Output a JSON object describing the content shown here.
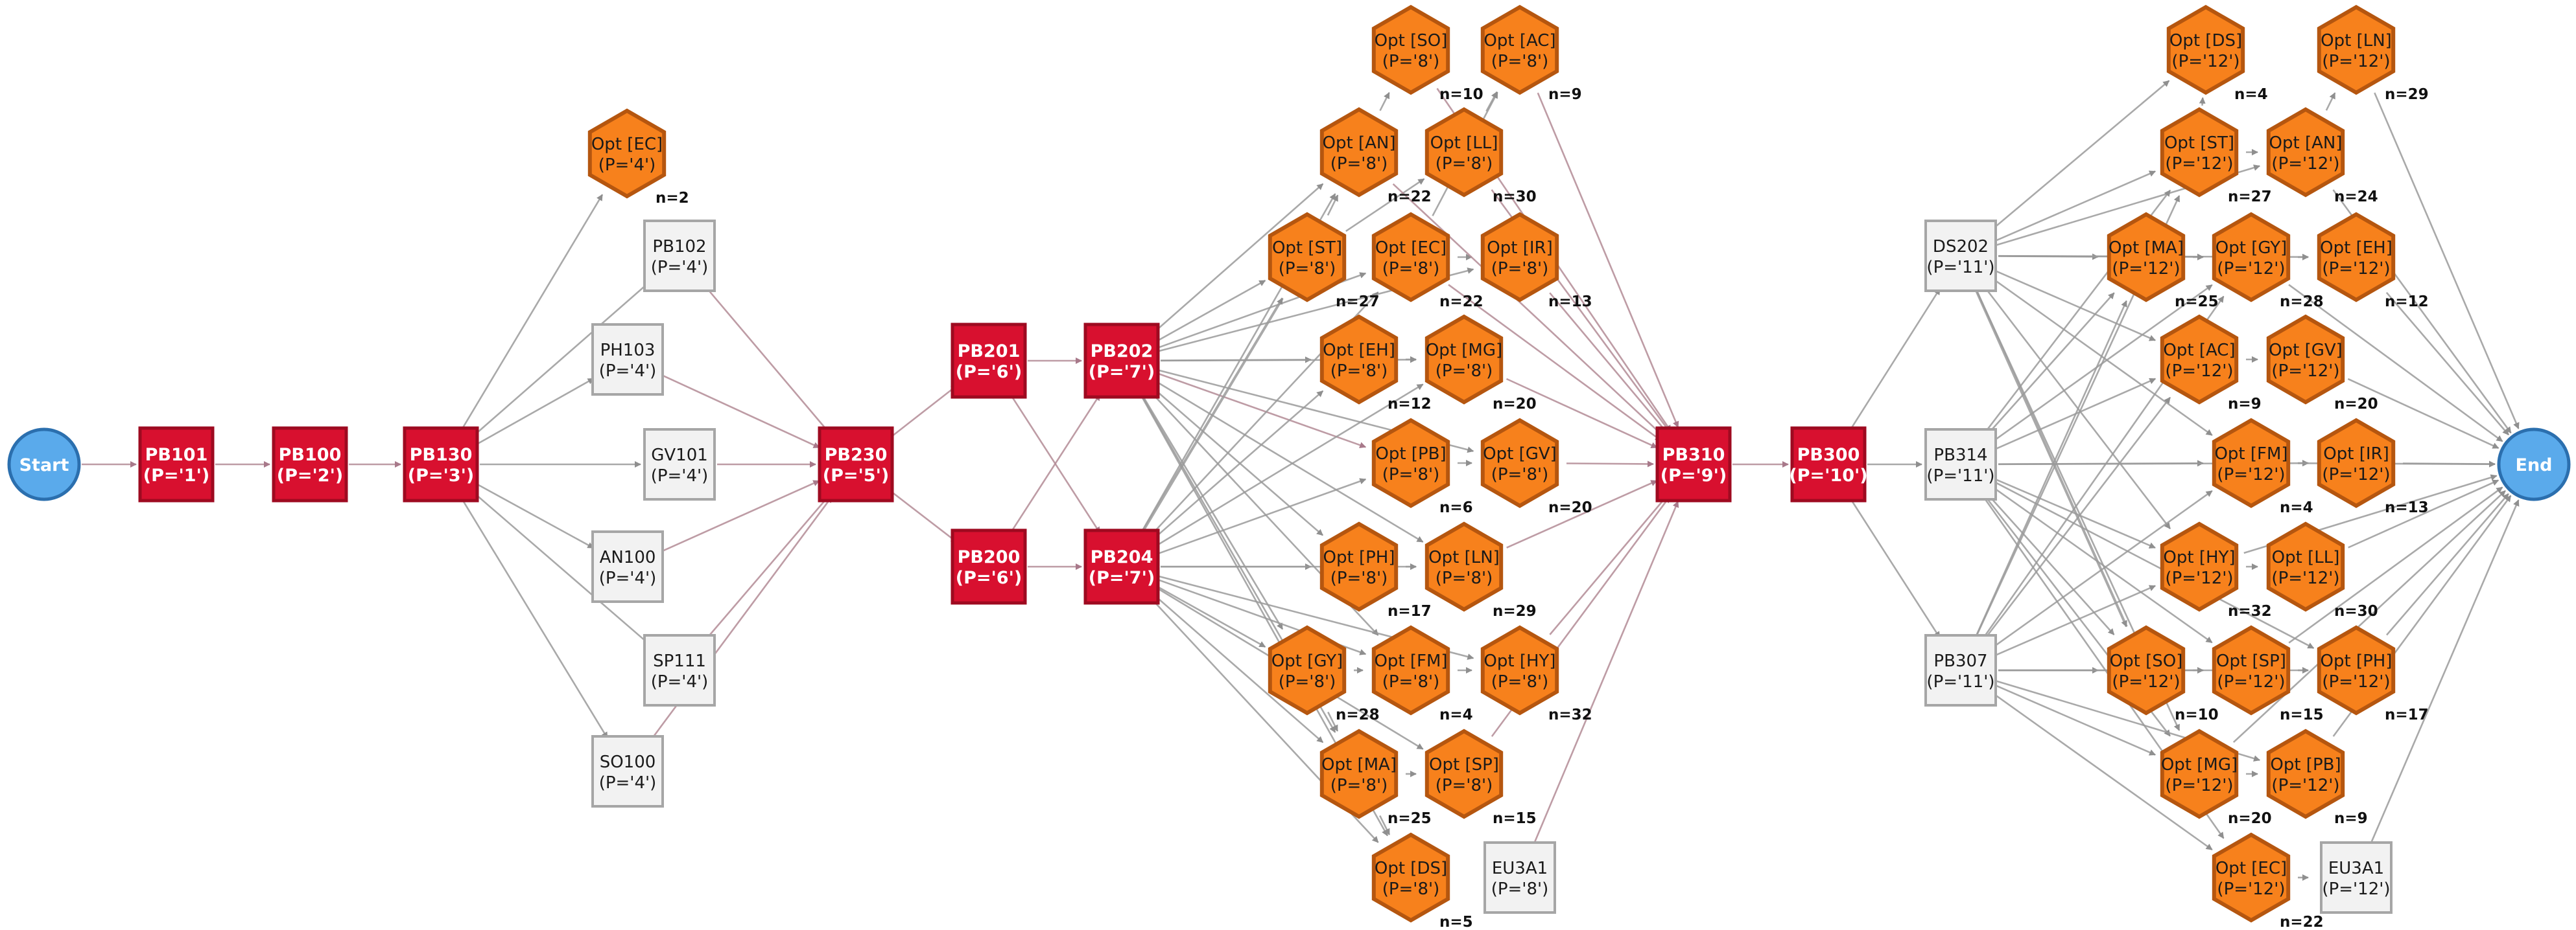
{
  "colors": {
    "background": "#ffffff",
    "start_end_fill": "#5aaaeb",
    "start_end_stroke": "#2b6fae",
    "required_fill": "#d8102f",
    "required_stroke": "#9e0a20",
    "option_fill": "#f7811c",
    "option_stroke": "#b5560f",
    "plain_fill": "#f2f2f2",
    "plain_stroke": "#a6a6a6",
    "edge_pink": "#b38b95",
    "edge_grey": "#9a9a9a",
    "edge_dark": "#707070"
  },
  "nodes": [
    {
      "id": "Start",
      "type": "terminal",
      "label": "Start"
    },
    {
      "id": "End",
      "type": "terminal",
      "label": "End"
    },
    {
      "id": "PB101",
      "type": "required",
      "label": "PB101",
      "period": "(P='1')"
    },
    {
      "id": "PB100",
      "type": "required",
      "label": "PB100",
      "period": "(P='2')"
    },
    {
      "id": "PB130",
      "type": "required",
      "label": "PB130",
      "period": "(P='3')"
    },
    {
      "id": "opt_EC_4",
      "type": "option",
      "label": "Opt [EC]",
      "period": "(P='4')",
      "n": "n=2"
    },
    {
      "id": "PB102",
      "type": "plain",
      "label": "PB102",
      "period": "(P='4')"
    },
    {
      "id": "PH103",
      "type": "plain",
      "label": "PH103",
      "period": "(P='4')"
    },
    {
      "id": "GV101",
      "type": "plain",
      "label": "GV101",
      "period": "(P='4')"
    },
    {
      "id": "AN100",
      "type": "plain",
      "label": "AN100",
      "period": "(P='4')"
    },
    {
      "id": "SP111",
      "type": "plain",
      "label": "SP111",
      "period": "(P='4')"
    },
    {
      "id": "SO100",
      "type": "plain",
      "label": "SO100",
      "period": "(P='4')"
    },
    {
      "id": "PB230",
      "type": "required",
      "label": "PB230",
      "period": "(P='5')"
    },
    {
      "id": "PB201",
      "type": "required",
      "label": "PB201",
      "period": "(P='6')"
    },
    {
      "id": "PB200",
      "type": "required",
      "label": "PB200",
      "period": "(P='6')"
    },
    {
      "id": "PB202",
      "type": "required",
      "label": "PB202",
      "period": "(P='7')"
    },
    {
      "id": "PB204",
      "type": "required",
      "label": "PB204",
      "period": "(P='7')"
    },
    {
      "id": "o8_SO",
      "type": "option",
      "label": "Opt [SO]",
      "period": "(P='8')",
      "n": "n=10"
    },
    {
      "id": "o8_AC",
      "type": "option",
      "label": "Opt [AC]",
      "period": "(P='8')",
      "n": "n=9"
    },
    {
      "id": "o8_AN",
      "type": "option",
      "label": "Opt [AN]",
      "period": "(P='8')",
      "n": "n=22"
    },
    {
      "id": "o8_LL",
      "type": "option",
      "label": "Opt [LL]",
      "period": "(P='8')",
      "n": "n=30"
    },
    {
      "id": "o8_ST",
      "type": "option",
      "label": "Opt [ST]",
      "period": "(P='8')",
      "n": "n=27"
    },
    {
      "id": "o8_EC",
      "type": "option",
      "label": "Opt [EC]",
      "period": "(P='8')",
      "n": "n=22"
    },
    {
      "id": "o8_IR",
      "type": "option",
      "label": "Opt [IR]",
      "period": "(P='8')",
      "n": "n=13"
    },
    {
      "id": "o8_EH",
      "type": "option",
      "label": "Opt [EH]",
      "period": "(P='8')",
      "n": "n=12"
    },
    {
      "id": "o8_MG",
      "type": "option",
      "label": "Opt [MG]",
      "period": "(P='8')",
      "n": "n=20"
    },
    {
      "id": "o8_PB",
      "type": "option",
      "label": "Opt [PB]",
      "period": "(P='8')",
      "n": "n=6"
    },
    {
      "id": "o8_GV",
      "type": "option",
      "label": "Opt [GV]",
      "period": "(P='8')",
      "n": "n=20"
    },
    {
      "id": "o8_PH",
      "type": "option",
      "label": "Opt [PH]",
      "period": "(P='8')",
      "n": "n=17"
    },
    {
      "id": "o8_LN",
      "type": "option",
      "label": "Opt [LN]",
      "period": "(P='8')",
      "n": "n=29"
    },
    {
      "id": "o8_GY",
      "type": "option",
      "label": "Opt [GY]",
      "period": "(P='8')",
      "n": "n=28"
    },
    {
      "id": "o8_FM",
      "type": "option",
      "label": "Opt [FM]",
      "period": "(P='8')",
      "n": "n=4"
    },
    {
      "id": "o8_HY",
      "type": "option",
      "label": "Opt [HY]",
      "period": "(P='8')",
      "n": "n=32"
    },
    {
      "id": "o8_MA",
      "type": "option",
      "label": "Opt [MA]",
      "period": "(P='8')",
      "n": "n=25"
    },
    {
      "id": "o8_SP",
      "type": "option",
      "label": "Opt [SP]",
      "period": "(P='8')",
      "n": "n=15"
    },
    {
      "id": "o8_DS",
      "type": "option",
      "label": "Opt [DS]",
      "period": "(P='8')",
      "n": "n=5"
    },
    {
      "id": "EU3A1_8",
      "type": "plain",
      "label": "EU3A1",
      "period": "(P='8')"
    },
    {
      "id": "PB310",
      "type": "required",
      "label": "PB310",
      "period": "(P='9')"
    },
    {
      "id": "PB300",
      "type": "required",
      "label": "PB300",
      "period": "(P='10')"
    },
    {
      "id": "DS202",
      "type": "plain",
      "label": "DS202",
      "period": "(P='11')"
    },
    {
      "id": "PB314",
      "type": "plain",
      "label": "PB314",
      "period": "(P='11')"
    },
    {
      "id": "PB307",
      "type": "plain",
      "label": "PB307",
      "period": "(P='11')"
    },
    {
      "id": "o12_DS",
      "type": "option",
      "label": "Opt [DS]",
      "period": "(P='12')",
      "n": "n=4"
    },
    {
      "id": "o12_LN",
      "type": "option",
      "label": "Opt [LN]",
      "period": "(P='12')",
      "n": "n=29"
    },
    {
      "id": "o12_ST",
      "type": "option",
      "label": "Opt [ST]",
      "period": "(P='12')",
      "n": "n=27"
    },
    {
      "id": "o12_AN",
      "type": "option",
      "label": "Opt [AN]",
      "period": "(P='12')",
      "n": "n=24"
    },
    {
      "id": "o12_MA",
      "type": "option",
      "label": "Opt [MA]",
      "period": "(P='12')",
      "n": "n=25"
    },
    {
      "id": "o12_GY",
      "type": "option",
      "label": "Opt [GY]",
      "period": "(P='12')",
      "n": "n=28"
    },
    {
      "id": "o12_EH",
      "type": "option",
      "label": "Opt [EH]",
      "period": "(P='12')",
      "n": "n=12"
    },
    {
      "id": "o12_AC",
      "type": "option",
      "label": "Opt [AC]",
      "period": "(P='12')",
      "n": "n=9"
    },
    {
      "id": "o12_GV",
      "type": "option",
      "label": "Opt [GV]",
      "period": "(P='12')",
      "n": "n=20"
    },
    {
      "id": "o12_FM",
      "type": "option",
      "label": "Opt [FM]",
      "period": "(P='12')",
      "n": "n=4"
    },
    {
      "id": "o12_IR",
      "type": "option",
      "label": "Opt [IR]",
      "period": "(P='12')",
      "n": "n=13"
    },
    {
      "id": "o12_HY",
      "type": "option",
      "label": "Opt [HY]",
      "period": "(P='12')",
      "n": "n=32"
    },
    {
      "id": "o12_LL",
      "type": "option",
      "label": "Opt [LL]",
      "period": "(P='12')",
      "n": "n=30"
    },
    {
      "id": "o12_SO",
      "type": "option",
      "label": "Opt [SO]",
      "period": "(P='12')",
      "n": "n=10"
    },
    {
      "id": "o12_SP",
      "type": "option",
      "label": "Opt [SP]",
      "period": "(P='12')",
      "n": "n=15"
    },
    {
      "id": "o12_PH",
      "type": "option",
      "label": "Opt [PH]",
      "period": "(P='12')",
      "n": "n=17"
    },
    {
      "id": "o12_MG",
      "type": "option",
      "label": "Opt [MG]",
      "period": "(P='12')",
      "n": "n=20"
    },
    {
      "id": "o12_PB",
      "type": "option",
      "label": "Opt [PB]",
      "period": "(P='12')",
      "n": "n=9"
    },
    {
      "id": "o12_EC",
      "type": "option",
      "label": "Opt [EC]",
      "period": "(P='12')",
      "n": "n=22"
    },
    {
      "id": "EU3A1_12",
      "type": "plain",
      "label": "EU3A1",
      "period": "(P='12')"
    }
  ],
  "edges": [
    [
      "Start",
      "PB101"
    ],
    [
      "PB101",
      "PB100"
    ],
    [
      "PB100",
      "PB130"
    ],
    [
      "PB130",
      "opt_EC_4"
    ],
    [
      "PB130",
      "PB102"
    ],
    [
      "PB130",
      "PH103"
    ],
    [
      "PB130",
      "GV101"
    ],
    [
      "PB130",
      "AN100"
    ],
    [
      "PB130",
      "SP111"
    ],
    [
      "PB130",
      "SO100"
    ],
    [
      "PB102",
      "PB230"
    ],
    [
      "PH103",
      "PB230"
    ],
    [
      "GV101",
      "PB230"
    ],
    [
      "AN100",
      "PB230"
    ],
    [
      "SP111",
      "PB230"
    ],
    [
      "SO100",
      "PB230"
    ],
    [
      "PB230",
      "PB201"
    ],
    [
      "PB230",
      "PB200"
    ],
    [
      "PB201",
      "PB202"
    ],
    [
      "PB201",
      "PB204"
    ],
    [
      "PB200",
      "PB202"
    ],
    [
      "PB200",
      "PB204"
    ],
    [
      "PB202",
      "o8_ST"
    ],
    [
      "PB202",
      "o8_AN"
    ],
    [
      "PB202",
      "o8_EC"
    ],
    [
      "PB202",
      "o8_EH"
    ],
    [
      "PB202",
      "o8_MG"
    ],
    [
      "PB202",
      "o8_PB"
    ],
    [
      "PB202",
      "o8_GV"
    ],
    [
      "PB202",
      "o8_PH"
    ],
    [
      "PB202",
      "o8_LN"
    ],
    [
      "PB202",
      "o8_GY"
    ],
    [
      "PB202",
      "o8_FM"
    ],
    [
      "PB202",
      "o8_MA"
    ],
    [
      "PB202",
      "o8_DS"
    ],
    [
      "PB202",
      "o8_IR"
    ],
    [
      "PB204",
      "o8_ST"
    ],
    [
      "PB204",
      "o8_EH"
    ],
    [
      "PB204",
      "o8_PB"
    ],
    [
      "PB204",
      "o8_PH"
    ],
    [
      "PB204",
      "o8_LN"
    ],
    [
      "PB204",
      "o8_GY"
    ],
    [
      "PB204",
      "o8_FM"
    ],
    [
      "PB204",
      "o8_HY"
    ],
    [
      "PB204",
      "o8_MA"
    ],
    [
      "PB204",
      "o8_SP"
    ],
    [
      "PB204",
      "o8_DS"
    ],
    [
      "PB204",
      "o8_MG"
    ],
    [
      "PB204",
      "o8_EC"
    ],
    [
      "PB204",
      "o8_AN"
    ],
    [
      "o8_AN",
      "o8_SO"
    ],
    [
      "o8_ST",
      "o8_AN"
    ],
    [
      "o8_ST",
      "o8_LL"
    ],
    [
      "o8_EC",
      "o8_AC"
    ],
    [
      "o8_LL",
      "o8_AC"
    ],
    [
      "o8_EC",
      "o8_IR"
    ],
    [
      "o8_EH",
      "o8_MG"
    ],
    [
      "o8_PB",
      "o8_GV"
    ],
    [
      "o8_PH",
      "o8_LN"
    ],
    [
      "o8_GY",
      "o8_FM"
    ],
    [
      "o8_FM",
      "o8_HY"
    ],
    [
      "o8_GY",
      "o8_MA"
    ],
    [
      "o8_MA",
      "o8_SP"
    ],
    [
      "o8_MA",
      "o8_DS"
    ],
    [
      "o8_SO",
      "PB310"
    ],
    [
      "o8_AC",
      "PB310"
    ],
    [
      "o8_LL",
      "PB310"
    ],
    [
      "o8_IR",
      "PB310"
    ],
    [
      "o8_MG",
      "PB310"
    ],
    [
      "o8_GV",
      "PB310"
    ],
    [
      "o8_LN",
      "PB310"
    ],
    [
      "o8_HY",
      "PB310"
    ],
    [
      "o8_SP",
      "PB310"
    ],
    [
      "EU3A1_8",
      "PB310"
    ],
    [
      "o8_EC",
      "PB310"
    ],
    [
      "o8_AN",
      "PB310"
    ],
    [
      "PB310",
      "PB300"
    ],
    [
      "PB300",
      "DS202"
    ],
    [
      "PB300",
      "PB314"
    ],
    [
      "PB300",
      "PB307"
    ],
    [
      "DS202",
      "o12_ST"
    ],
    [
      "DS202",
      "o12_MA"
    ],
    [
      "DS202",
      "o12_GY"
    ],
    [
      "DS202",
      "o12_AC"
    ],
    [
      "DS202",
      "o12_AN"
    ],
    [
      "DS202",
      "o12_FM"
    ],
    [
      "DS202",
      "o12_HY"
    ],
    [
      "DS202",
      "o12_SO"
    ],
    [
      "DS202",
      "o12_MG"
    ],
    [
      "DS202",
      "o12_EH"
    ],
    [
      "DS202",
      "o12_DS"
    ],
    [
      "PB314",
      "o12_MA"
    ],
    [
      "PB314",
      "o12_ST"
    ],
    [
      "PB314",
      "o12_AC"
    ],
    [
      "PB314",
      "o12_FM"
    ],
    [
      "PB314",
      "o12_HY"
    ],
    [
      "PB314",
      "o12_SO"
    ],
    [
      "PB314",
      "o12_SP"
    ],
    [
      "PB314",
      "o12_MG"
    ],
    [
      "PB314",
      "o12_EC"
    ],
    [
      "PB314",
      "o12_GY"
    ],
    [
      "PB314",
      "o12_PH"
    ],
    [
      "PB314",
      "o12_IR"
    ],
    [
      "PB307",
      "o12_MA"
    ],
    [
      "PB307",
      "o12_ST"
    ],
    [
      "PB307",
      "o12_AC"
    ],
    [
      "PB307",
      "o12_FM"
    ],
    [
      "PB307",
      "o12_HY"
    ],
    [
      "PB307",
      "o12_SO"
    ],
    [
      "PB307",
      "o12_SP"
    ],
    [
      "PB307",
      "o12_MG"
    ],
    [
      "PB307",
      "o12_EC"
    ],
    [
      "PB307",
      "o12_GY"
    ],
    [
      "PB307",
      "o12_PB"
    ],
    [
      "PB307",
      "o12_PH"
    ],
    [
      "o12_ST",
      "o12_DS"
    ],
    [
      "o12_AN",
      "o12_LN"
    ],
    [
      "o12_ST",
      "o12_AN"
    ],
    [
      "o12_MA",
      "o12_GY"
    ],
    [
      "o12_GY",
      "o12_EH"
    ],
    [
      "o12_AC",
      "o12_GV"
    ],
    [
      "o12_FM",
      "o12_IR"
    ],
    [
      "o12_HY",
      "o12_LL"
    ],
    [
      "o12_SO",
      "o12_SP"
    ],
    [
      "o12_SP",
      "o12_PH"
    ],
    [
      "o12_MG",
      "o12_PB"
    ],
    [
      "o12_EC",
      "o12_EU3"
    ],
    [
      "o12_LN",
      "End"
    ],
    [
      "o12_EH",
      "End"
    ],
    [
      "o12_GV",
      "End"
    ],
    [
      "o12_IR",
      "End"
    ],
    [
      "o12_LL",
      "End"
    ],
    [
      "o12_PH",
      "End"
    ],
    [
      "o12_PB",
      "End"
    ],
    [
      "EU3A1_12",
      "End"
    ],
    [
      "o12_AN",
      "End"
    ],
    [
      "o12_GY",
      "End"
    ],
    [
      "o12_FM",
      "End"
    ],
    [
      "o12_HY",
      "End"
    ],
    [
      "o12_SP",
      "End"
    ],
    [
      "o12_MG",
      "End"
    ]
  ]
}
